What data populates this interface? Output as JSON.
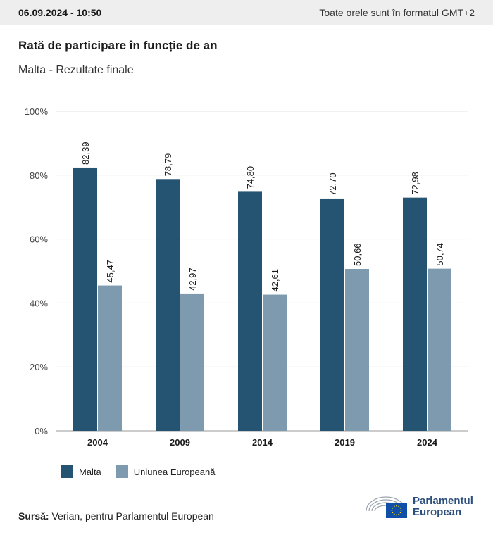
{
  "header": {
    "datetime": "06.09.2024 - 10:50",
    "timezone_note": "Toate orele sunt în formatul GMT+2"
  },
  "colors": {
    "malta": "#255372",
    "eu": "#7d9aae",
    "grid": "#e3e3e3",
    "axis": "#999999",
    "logo_blue": "#2d4f7c",
    "eu_flag": "#0f4fa8",
    "eu_stars": "#ffdd00"
  },
  "chart_data": {
    "type": "bar",
    "title": "Rată de participare în funcție de an",
    "subtitle": "Malta - Rezultate finale",
    "categories": [
      "2004",
      "2009",
      "2014",
      "2019",
      "2024"
    ],
    "series": [
      {
        "name": "Malta",
        "values": [
          82.39,
          78.79,
          74.8,
          72.7,
          72.98
        ],
        "labels": [
          "82,39",
          "78,79",
          "74,80",
          "72,70",
          "72,98"
        ]
      },
      {
        "name": "Uniunea Europeană",
        "values": [
          45.47,
          42.97,
          42.61,
          50.66,
          50.74
        ],
        "labels": [
          "45,47",
          "42,97",
          "42,61",
          "50,66",
          "50,74"
        ]
      }
    ],
    "ylim": [
      0,
      100
    ],
    "yticks": [
      0,
      20,
      40,
      60,
      80,
      100
    ],
    "ytick_labels": [
      "0%",
      "20%",
      "40%",
      "60%",
      "80%",
      "100%"
    ],
    "grid": true,
    "legend_position": "bottom-left"
  },
  "footer": {
    "source_label": "Sursă:",
    "source_text": " Verian, pentru Parlamentul European",
    "logo_line1": "Parlamentul",
    "logo_line2": "European"
  }
}
